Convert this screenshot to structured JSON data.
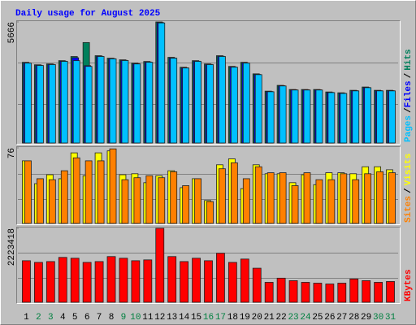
{
  "chart_data": [
    {
      "type": "bar",
      "title": "Daily usage for August 2025",
      "ylim": [
        0,
        5666
      ],
      "yticks": [
        5666
      ],
      "legend_separator": "/",
      "series": [
        {
          "name": "Hits",
          "color": "#00805c",
          "values": [
            3777,
            3662,
            3700,
            3854,
            4047,
            4702,
            4086,
            3970,
            3893,
            3739,
            3816,
            5666,
            4009,
            3546,
            3854,
            3700,
            4086,
            3585,
            3777,
            3238,
            2428,
            2698,
            2505,
            2505,
            2505,
            2390,
            2351,
            2467,
            2621,
            2467,
            2467
          ]
        },
        {
          "name": "Files",
          "color": "#0000ff",
          "values": [
            3750,
            3640,
            3680,
            3830,
            3990,
            3620,
            4060,
            3950,
            3870,
            3710,
            3790,
            5640,
            3980,
            3520,
            3830,
            3680,
            4060,
            3560,
            3750,
            3210,
            2410,
            2680,
            2490,
            2490,
            2490,
            2370,
            2330,
            2450,
            2600,
            2450,
            2450
          ]
        },
        {
          "name": "Pages",
          "color": "#00c0ff",
          "values": [
            3740,
            3630,
            3670,
            3820,
            3854,
            3585,
            4050,
            3940,
            3860,
            3700,
            3780,
            5620,
            3970,
            3510,
            3820,
            3670,
            4050,
            3550,
            3740,
            3200,
            2400,
            2670,
            2480,
            2480,
            2480,
            2360,
            2320,
            2440,
            2590,
            2440,
            2440
          ]
        }
      ]
    },
    {
      "type": "bar",
      "ylim": [
        0,
        76
      ],
      "yticks": [
        76
      ],
      "legend_separator": "/",
      "series": [
        {
          "name": "Visits",
          "color": "#ffff00",
          "values": [
            63,
            40,
            49,
            45,
            71,
            48,
            71,
            73,
            49,
            50,
            41,
            48,
            53,
            36,
            45,
            23,
            59,
            65,
            35,
            59,
            50,
            50,
            41,
            49,
            39,
            51,
            51,
            50,
            57,
            57,
            54
          ]
        },
        {
          "name": "Sites",
          "color": "#ff8000",
          "values": [
            63,
            45,
            44,
            53,
            66,
            63,
            63,
            75,
            44,
            46,
            48,
            46,
            52,
            38,
            45,
            22,
            55,
            61,
            45,
            57,
            51,
            51,
            38,
            51,
            44,
            44,
            50,
            44,
            50,
            52,
            51
          ]
        }
      ]
    },
    {
      "type": "bar",
      "ylim": [
        0,
        2223418
      ],
      "yticks": [
        2223418
      ],
      "categories": [
        "1",
        "2",
        "3",
        "4",
        "5",
        "6",
        "7",
        "8",
        "9",
        "10",
        "11",
        "12",
        "13",
        "14",
        "15",
        "16",
        "17",
        "18",
        "19",
        "20",
        "21",
        "22",
        "23",
        "24",
        "25",
        "26",
        "27",
        "28",
        "29",
        "30",
        "31"
      ],
      "category_colors": [
        "#000000",
        "#008040",
        "#008040",
        "#000000",
        "#000000",
        "#000000",
        "#000000",
        "#000000",
        "#008040",
        "#008040",
        "#000000",
        "#000000",
        "#000000",
        "#000000",
        "#000000",
        "#008040",
        "#008040",
        "#000000",
        "#000000",
        "#000000",
        "#000000",
        "#000000",
        "#008040",
        "#008040",
        "#000000",
        "#000000",
        "#000000",
        "#000000",
        "#000000",
        "#008040",
        "#008040"
      ],
      "series": [
        {
          "name": "KBytes",
          "color": "#ff0000",
          "values": [
            1249100,
            1199140,
            1224120,
            1349030,
            1324050,
            1199140,
            1224120,
            1374010,
            1324050,
            1249100,
            1274080,
            2223418,
            1374010,
            1224120,
            1324050,
            1249100,
            1473940,
            1199140,
            1299060,
            1024260,
            599570,
            724480,
            649530,
            599570,
            574590,
            549600,
            574590,
            699500,
            649530,
            599570,
            624550
          ]
        }
      ]
    }
  ]
}
